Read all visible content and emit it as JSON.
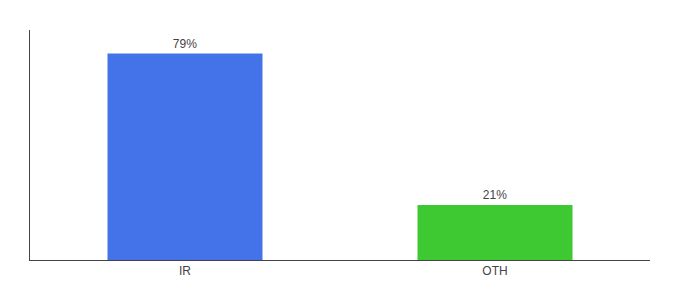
{
  "chart_data": {
    "type": "bar",
    "categories": [
      "IR",
      "OTH"
    ],
    "values": [
      79,
      21
    ],
    "value_labels": [
      "79%",
      "21%"
    ],
    "colors": [
      "#4472e8",
      "#3ec832"
    ],
    "ylim": [
      0,
      88
    ],
    "data_labels": true,
    "tick_labels": "x",
    "grid": false
  }
}
